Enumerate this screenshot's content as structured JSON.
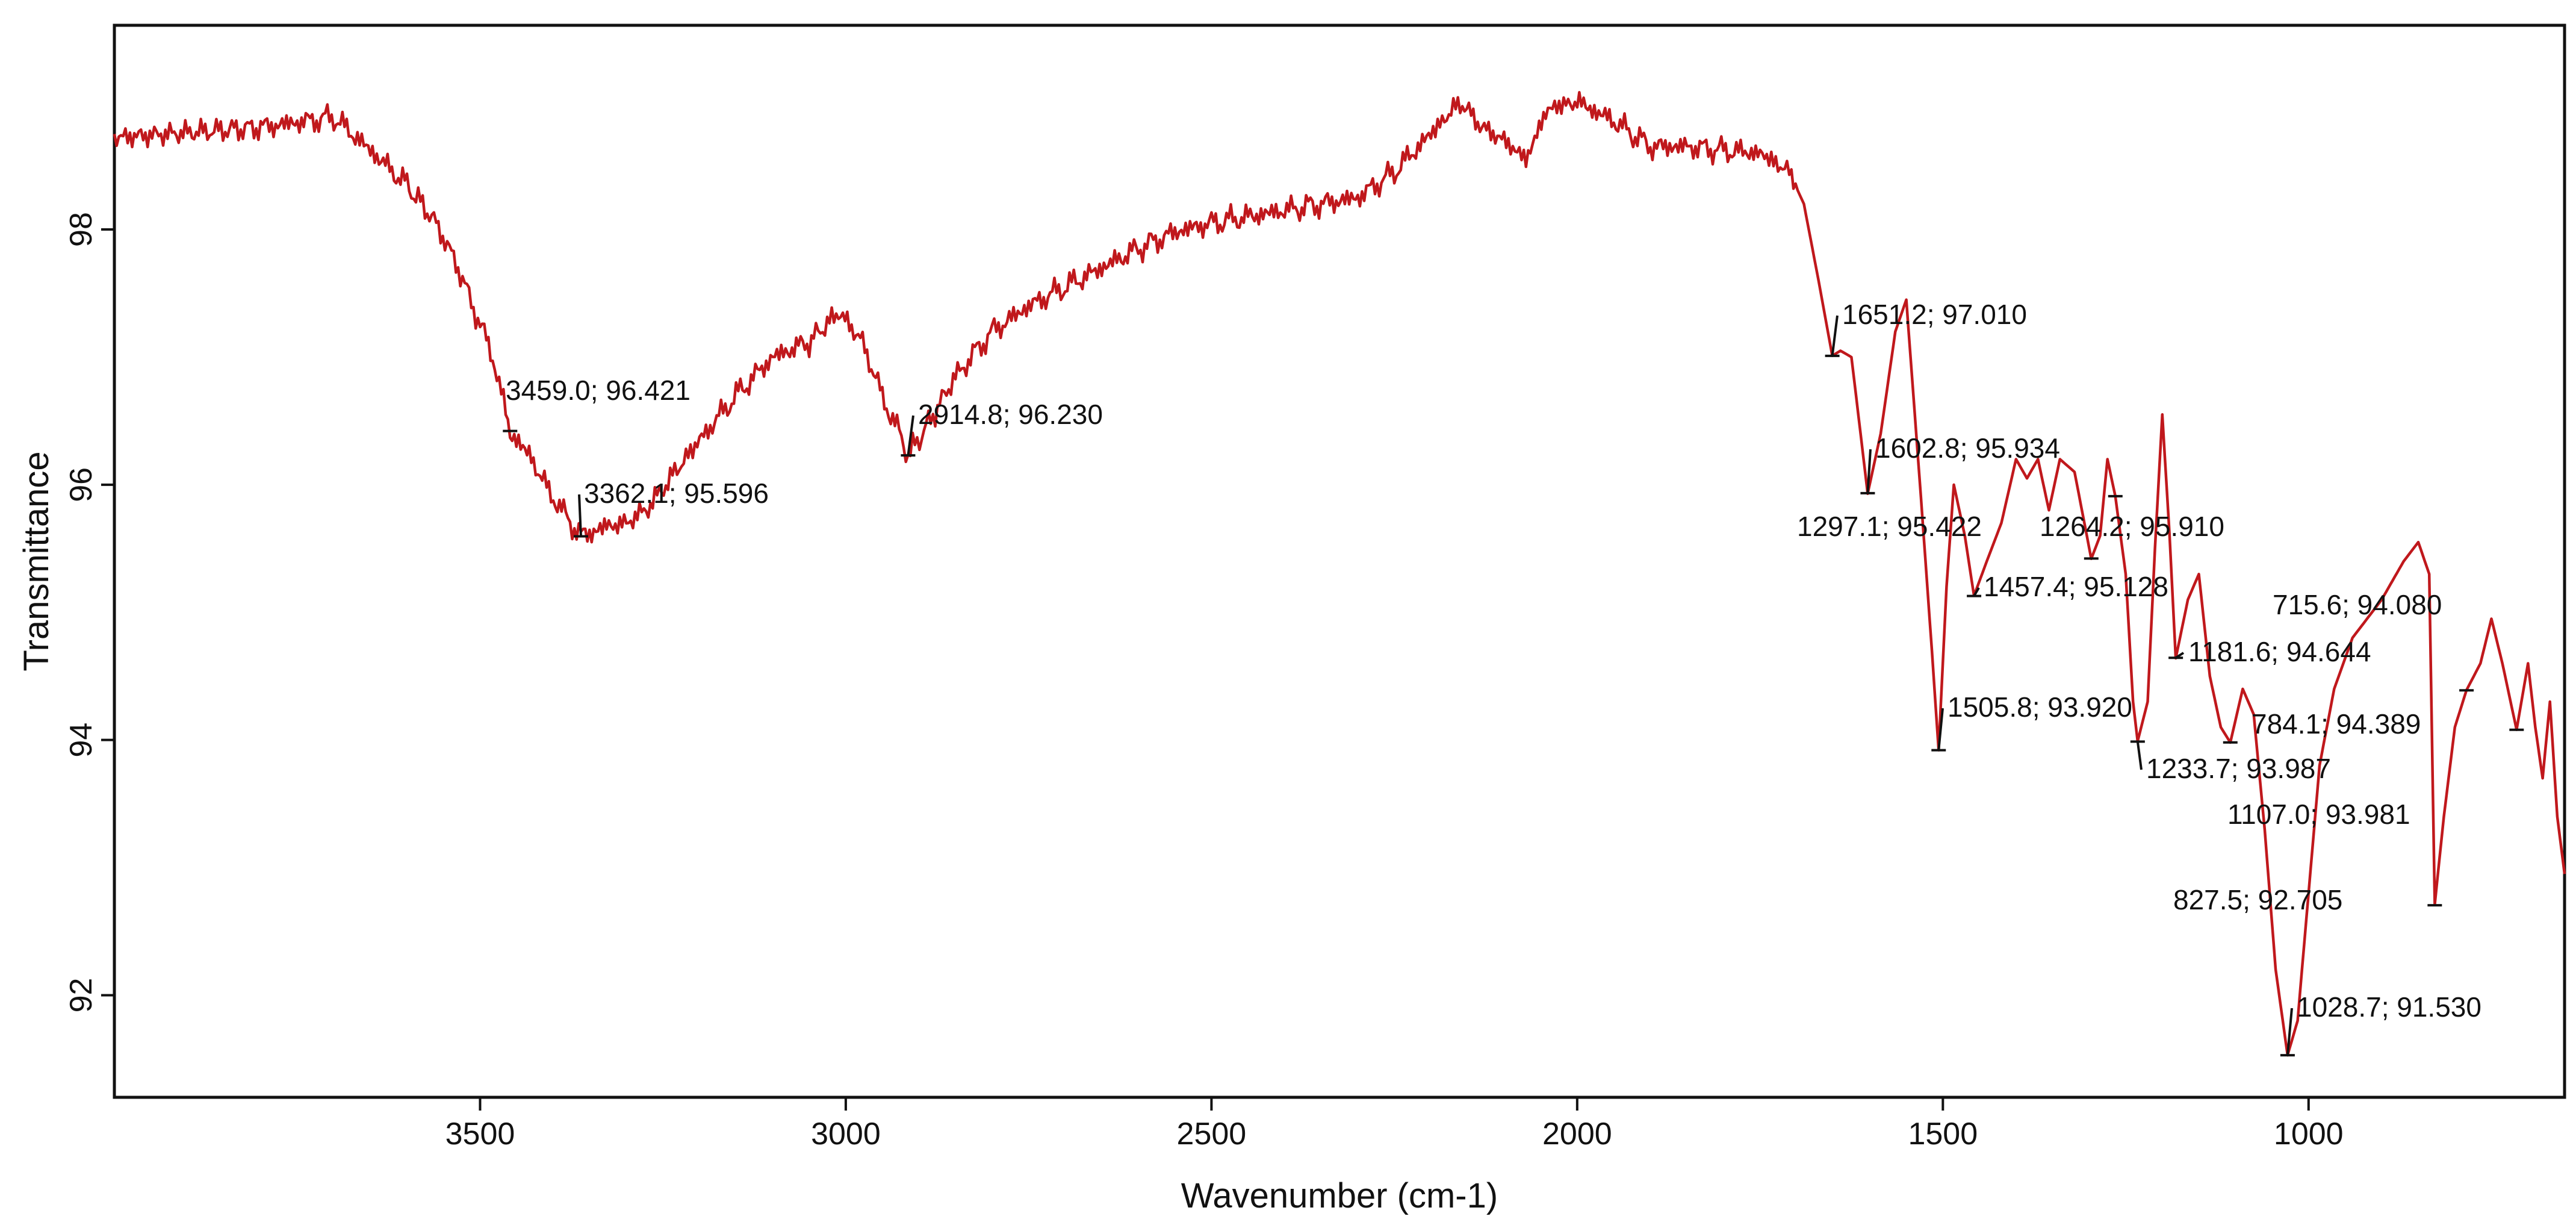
{
  "chart_data": {
    "type": "line",
    "title": "",
    "xlabel": "Wavenumber (cm-1)",
    "ylabel": "Transmittance",
    "xlim": [
      4000,
      650
    ],
    "ylim": [
      91.2,
      99.6
    ],
    "x_ticks": [
      3500,
      3000,
      2500,
      2000,
      1500,
      1000
    ],
    "y_ticks": [
      92,
      94,
      96,
      98
    ],
    "grid": false,
    "legend": "none",
    "line_color": "#c0181c",
    "series": [
      {
        "points": [
          [
            4000,
            98.72
          ],
          [
            3900,
            98.76
          ],
          [
            3800,
            98.8
          ],
          [
            3750,
            98.84
          ],
          [
            3700,
            98.88
          ],
          [
            3650,
            98.62
          ],
          [
            3600,
            98.35
          ],
          [
            3560,
            98.05
          ],
          [
            3530,
            97.7
          ],
          [
            3500,
            97.25
          ],
          [
            3480,
            96.95
          ],
          [
            3459,
            96.42
          ],
          [
            3430,
            96.2
          ],
          [
            3400,
            95.9
          ],
          [
            3380,
            95.72
          ],
          [
            3362,
            95.6
          ],
          [
            3330,
            95.67
          ],
          [
            3300,
            95.7
          ],
          [
            3270,
            95.82
          ],
          [
            3240,
            96.05
          ],
          [
            3200,
            96.35
          ],
          [
            3150,
            96.7
          ],
          [
            3100,
            97.0
          ],
          [
            3050,
            97.12
          ],
          [
            3010,
            97.35
          ],
          [
            2980,
            97.15
          ],
          [
            2950,
            96.7
          ],
          [
            2930,
            96.45
          ],
          [
            2914.8,
            96.23
          ],
          [
            2890,
            96.45
          ],
          [
            2850,
            96.85
          ],
          [
            2800,
            97.2
          ],
          [
            2750,
            97.4
          ],
          [
            2700,
            97.55
          ],
          [
            2650,
            97.7
          ],
          [
            2600,
            97.85
          ],
          [
            2550,
            97.98
          ],
          [
            2500,
            98.05
          ],
          [
            2450,
            98.1
          ],
          [
            2400,
            98.15
          ],
          [
            2350,
            98.2
          ],
          [
            2300,
            98.25
          ],
          [
            2250,
            98.45
          ],
          [
            2200,
            98.75
          ],
          [
            2160,
            99.0
          ],
          [
            2130,
            98.8
          ],
          [
            2100,
            98.7
          ],
          [
            2070,
            98.55
          ],
          [
            2040,
            98.95
          ],
          [
            2000,
            99.0
          ],
          [
            1950,
            98.85
          ],
          [
            1900,
            98.65
          ],
          [
            1850,
            98.65
          ],
          [
            1800,
            98.62
          ],
          [
            1750,
            98.6
          ],
          [
            1710,
            98.45
          ],
          [
            1690,
            98.2
          ],
          [
            1670,
            97.6
          ],
          [
            1651.2,
            97.01
          ],
          [
            1640,
            97.05
          ],
          [
            1625,
            97.0
          ],
          [
            1602.8,
            95.93
          ],
          [
            1585,
            96.4
          ],
          [
            1565,
            97.2
          ],
          [
            1550,
            97.45
          ],
          [
            1530,
            95.9
          ],
          [
            1515,
            94.7
          ],
          [
            1505.8,
            93.92
          ],
          [
            1495,
            95.2
          ],
          [
            1485,
            96.0
          ],
          [
            1470,
            95.6
          ],
          [
            1457.4,
            95.13
          ],
          [
            1440,
            95.4
          ],
          [
            1420,
            95.7
          ],
          [
            1400,
            96.2
          ],
          [
            1385,
            96.05
          ],
          [
            1370,
            96.2
          ],
          [
            1355,
            95.8
          ],
          [
            1340,
            96.2
          ],
          [
            1320,
            96.1
          ],
          [
            1297.1,
            95.42
          ],
          [
            1285,
            95.6
          ],
          [
            1275,
            96.2
          ],
          [
            1264.2,
            95.91
          ],
          [
            1250,
            95.3
          ],
          [
            1240,
            94.3
          ],
          [
            1233.7,
            93.99
          ],
          [
            1220,
            94.3
          ],
          [
            1210,
            95.5
          ],
          [
            1200,
            96.55
          ],
          [
            1190,
            95.6
          ],
          [
            1181.6,
            94.64
          ],
          [
            1165,
            95.1
          ],
          [
            1150,
            95.3
          ],
          [
            1135,
            94.5
          ],
          [
            1120,
            94.1
          ],
          [
            1107.0,
            93.98
          ],
          [
            1090,
            94.4
          ],
          [
            1075,
            94.2
          ],
          [
            1060,
            93.3
          ],
          [
            1045,
            92.2
          ],
          [
            1028.7,
            91.53
          ],
          [
            1015,
            91.8
          ],
          [
            1000,
            92.8
          ],
          [
            985,
            93.8
          ],
          [
            965,
            94.4
          ],
          [
            940,
            94.8
          ],
          [
            900,
            95.1
          ],
          [
            870,
            95.4
          ],
          [
            850,
            95.55
          ],
          [
            835,
            95.3
          ],
          [
            827.5,
            92.71
          ],
          [
            815,
            93.4
          ],
          [
            800,
            94.1
          ],
          [
            784.1,
            94.39
          ],
          [
            765,
            94.6
          ],
          [
            750,
            94.95
          ],
          [
            735,
            94.6
          ],
          [
            715.6,
            94.08
          ],
          [
            700,
            94.6
          ],
          [
            690,
            94.1
          ],
          [
            680,
            93.7
          ],
          [
            670,
            94.3
          ],
          [
            660,
            93.4
          ],
          [
            650,
            92.95
          ]
        ]
      }
    ],
    "annotations": [
      {
        "text": "3459.0; 96.421",
        "x": 3459.0,
        "y": 96.421
      },
      {
        "text": "3362.1; 95.596",
        "x": 3362.1,
        "y": 95.596
      },
      {
        "text": "2914.8; 96.230",
        "x": 2914.8,
        "y": 96.23
      },
      {
        "text": "1651.2; 97.010",
        "x": 1651.2,
        "y": 97.01
      },
      {
        "text": "1602.8; 95.934",
        "x": 1602.8,
        "y": 95.934
      },
      {
        "text": "1297.1; 95.422",
        "x": 1297.1,
        "y": 95.422
      },
      {
        "text": "1264.2; 95.910",
        "x": 1264.2,
        "y": 95.91
      },
      {
        "text": "1457.4; 95.128",
        "x": 1457.4,
        "y": 95.128
      },
      {
        "text": "715.6; 94.080",
        "x": 715.6,
        "y": 94.08
      },
      {
        "text": "1181.6; 94.644",
        "x": 1181.6,
        "y": 94.644
      },
      {
        "text": "1505.8; 93.920",
        "x": 1505.8,
        "y": 93.92
      },
      {
        "text": "784.1; 94.389",
        "x": 784.1,
        "y": 94.389
      },
      {
        "text": "1233.7; 93.987",
        "x": 1233.7,
        "y": 93.987
      },
      {
        "text": "1107.0; 93.981",
        "x": 1107.0,
        "y": 93.981
      },
      {
        "text": "827.5; 92.705",
        "x": 827.5,
        "y": 92.705
      },
      {
        "text": "1028.7; 91.530",
        "x": 1028.7,
        "y": 91.53
      }
    ]
  }
}
